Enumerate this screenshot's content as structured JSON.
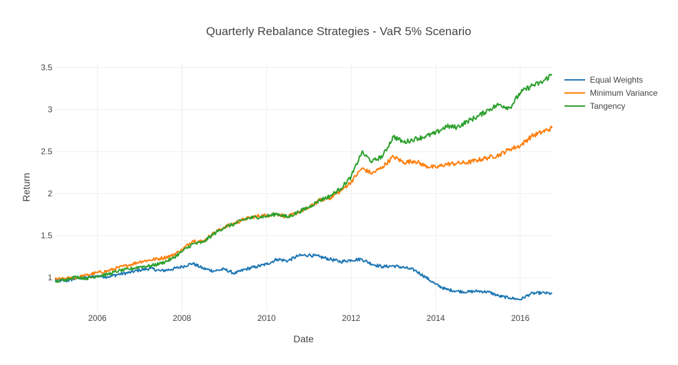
{
  "chart_data": {
    "type": "line",
    "title": "Quarterly Rebalance Strategies - VaR 5% Scenario",
    "xlabel": "Date",
    "ylabel": "Return",
    "xlim": [
      "2005-01-01",
      "2016-10-01"
    ],
    "ylim": [
      0.6,
      3.55
    ],
    "x_ticks": [
      "2006",
      "2008",
      "2010",
      "2012",
      "2014",
      "2016"
    ],
    "y_ticks": [
      "1",
      "1.5",
      "2",
      "2.5",
      "3",
      "3.5"
    ],
    "grid": true,
    "legend_position": "top-right",
    "colors": {
      "Equal Weights": "#1f77b4",
      "Minimum Variance": "#ff7f0e",
      "Tangency": "#2ca02c"
    },
    "series": [
      {
        "name": "Equal Weights",
        "points": [
          [
            "2005-01-01",
            0.97
          ],
          [
            "2005-04-01",
            0.96
          ],
          [
            "2005-07-01",
            0.99
          ],
          [
            "2005-10-01",
            1.0
          ],
          [
            "2006-01-01",
            1.02
          ],
          [
            "2006-04-01",
            1.01
          ],
          [
            "2006-07-01",
            1.04
          ],
          [
            "2006-10-01",
            1.06
          ],
          [
            "2007-01-01",
            1.09
          ],
          [
            "2007-04-01",
            1.11
          ],
          [
            "2007-07-01",
            1.08
          ],
          [
            "2007-10-01",
            1.1
          ],
          [
            "2008-01-01",
            1.13
          ],
          [
            "2008-04-01",
            1.17
          ],
          [
            "2008-07-01",
            1.11
          ],
          [
            "2008-10-01",
            1.08
          ],
          [
            "2009-01-01",
            1.1
          ],
          [
            "2009-04-01",
            1.05
          ],
          [
            "2009-07-01",
            1.1
          ],
          [
            "2009-10-01",
            1.13
          ],
          [
            "2010-01-01",
            1.16
          ],
          [
            "2010-04-01",
            1.22
          ],
          [
            "2010-07-01",
            1.2
          ],
          [
            "2010-10-01",
            1.26
          ],
          [
            "2011-01-01",
            1.27
          ],
          [
            "2011-04-01",
            1.25
          ],
          [
            "2011-07-01",
            1.22
          ],
          [
            "2011-10-01",
            1.19
          ],
          [
            "2012-01-01",
            1.21
          ],
          [
            "2012-04-01",
            1.22
          ],
          [
            "2012-07-01",
            1.16
          ],
          [
            "2012-10-01",
            1.13
          ],
          [
            "2013-01-01",
            1.14
          ],
          [
            "2013-04-01",
            1.12
          ],
          [
            "2013-07-01",
            1.09
          ],
          [
            "2013-10-01",
            1.01
          ],
          [
            "2014-01-01",
            0.92
          ],
          [
            "2014-04-01",
            0.86
          ],
          [
            "2014-07-01",
            0.84
          ],
          [
            "2014-10-01",
            0.83
          ],
          [
            "2015-01-01",
            0.84
          ],
          [
            "2015-04-01",
            0.83
          ],
          [
            "2015-07-01",
            0.78
          ],
          [
            "2015-10-01",
            0.76
          ],
          [
            "2016-01-01",
            0.74
          ],
          [
            "2016-04-01",
            0.81
          ],
          [
            "2016-07-01",
            0.82
          ],
          [
            "2016-10-01",
            0.81
          ]
        ]
      },
      {
        "name": "Minimum Variance",
        "points": [
          [
            "2005-01-01",
            0.98
          ],
          [
            "2005-04-01",
            0.99
          ],
          [
            "2005-07-01",
            1.0
          ],
          [
            "2005-10-01",
            1.03
          ],
          [
            "2006-01-01",
            1.06
          ],
          [
            "2006-04-01",
            1.08
          ],
          [
            "2006-07-01",
            1.12
          ],
          [
            "2006-10-01",
            1.15
          ],
          [
            "2007-01-01",
            1.19
          ],
          [
            "2007-04-01",
            1.21
          ],
          [
            "2007-07-01",
            1.23
          ],
          [
            "2007-10-01",
            1.26
          ],
          [
            "2008-01-01",
            1.33
          ],
          [
            "2008-04-01",
            1.44
          ],
          [
            "2008-07-01",
            1.43
          ],
          [
            "2008-10-01",
            1.53
          ],
          [
            "2009-01-01",
            1.6
          ],
          [
            "2009-04-01",
            1.65
          ],
          [
            "2009-07-01",
            1.7
          ],
          [
            "2009-10-01",
            1.73
          ],
          [
            "2010-01-01",
            1.74
          ],
          [
            "2010-04-01",
            1.76
          ],
          [
            "2010-07-01",
            1.72
          ],
          [
            "2010-10-01",
            1.78
          ],
          [
            "2011-01-01",
            1.83
          ],
          [
            "2011-04-01",
            1.92
          ],
          [
            "2011-07-01",
            1.95
          ],
          [
            "2011-10-01",
            2.03
          ],
          [
            "2012-01-01",
            2.14
          ],
          [
            "2012-04-01",
            2.3
          ],
          [
            "2012-07-01",
            2.24
          ],
          [
            "2012-10-01",
            2.32
          ],
          [
            "2013-01-01",
            2.44
          ],
          [
            "2013-04-01",
            2.37
          ],
          [
            "2013-07-01",
            2.39
          ],
          [
            "2013-10-01",
            2.33
          ],
          [
            "2014-01-01",
            2.31
          ],
          [
            "2014-04-01",
            2.35
          ],
          [
            "2014-07-01",
            2.36
          ],
          [
            "2014-10-01",
            2.37
          ],
          [
            "2015-01-01",
            2.4
          ],
          [
            "2015-04-01",
            2.43
          ],
          [
            "2015-07-01",
            2.46
          ],
          [
            "2015-10-01",
            2.53
          ],
          [
            "2016-01-01",
            2.57
          ],
          [
            "2016-04-01",
            2.68
          ],
          [
            "2016-07-01",
            2.73
          ],
          [
            "2016-10-01",
            2.78
          ]
        ]
      },
      {
        "name": "Tangency",
        "points": [
          [
            "2005-01-01",
            0.95
          ],
          [
            "2005-04-01",
            0.98
          ],
          [
            "2005-07-01",
            1.01
          ],
          [
            "2005-10-01",
            0.99
          ],
          [
            "2006-01-01",
            1.02
          ],
          [
            "2006-04-01",
            1.04
          ],
          [
            "2006-07-01",
            1.08
          ],
          [
            "2006-10-01",
            1.1
          ],
          [
            "2007-01-01",
            1.13
          ],
          [
            "2007-04-01",
            1.14
          ],
          [
            "2007-07-01",
            1.17
          ],
          [
            "2007-10-01",
            1.22
          ],
          [
            "2008-01-01",
            1.31
          ],
          [
            "2008-04-01",
            1.4
          ],
          [
            "2008-07-01",
            1.42
          ],
          [
            "2008-10-01",
            1.52
          ],
          [
            "2009-01-01",
            1.6
          ],
          [
            "2009-04-01",
            1.64
          ],
          [
            "2009-07-01",
            1.7
          ],
          [
            "2009-10-01",
            1.72
          ],
          [
            "2010-01-01",
            1.73
          ],
          [
            "2010-04-01",
            1.76
          ],
          [
            "2010-07-01",
            1.72
          ],
          [
            "2010-10-01",
            1.78
          ],
          [
            "2011-01-01",
            1.84
          ],
          [
            "2011-04-01",
            1.92
          ],
          [
            "2011-07-01",
            1.97
          ],
          [
            "2011-10-01",
            2.06
          ],
          [
            "2012-01-01",
            2.2
          ],
          [
            "2012-04-01",
            2.49
          ],
          [
            "2012-07-01",
            2.38
          ],
          [
            "2012-10-01",
            2.45
          ],
          [
            "2013-01-01",
            2.68
          ],
          [
            "2013-04-01",
            2.61
          ],
          [
            "2013-07-01",
            2.65
          ],
          [
            "2013-10-01",
            2.68
          ],
          [
            "2014-01-01",
            2.72
          ],
          [
            "2014-04-01",
            2.8
          ],
          [
            "2014-07-01",
            2.79
          ],
          [
            "2014-10-01",
            2.86
          ],
          [
            "2015-01-01",
            2.92
          ],
          [
            "2015-04-01",
            3.0
          ],
          [
            "2015-07-01",
            3.06
          ],
          [
            "2015-10-01",
            3.02
          ],
          [
            "2016-01-01",
            3.2
          ],
          [
            "2016-04-01",
            3.28
          ],
          [
            "2016-07-01",
            3.32
          ],
          [
            "2016-10-01",
            3.42
          ]
        ]
      }
    ]
  }
}
